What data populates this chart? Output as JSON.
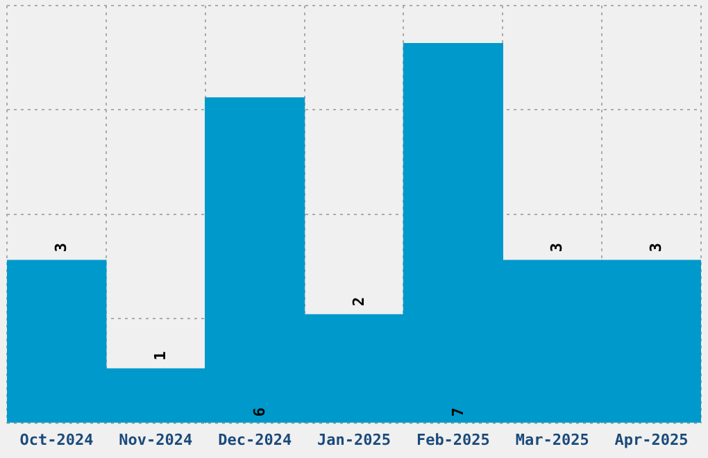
{
  "chart_data": {
    "type": "bar",
    "categories": [
      "Oct-2024",
      "Nov-2024",
      "Dec-2024",
      "Jan-2025",
      "Feb-2025",
      "Mar-2025",
      "Apr-2025"
    ],
    "values": [
      3,
      1,
      6,
      2,
      7,
      3,
      3
    ],
    "color": "#0099cc",
    "data_labels": true,
    "grid": true,
    "ylim": [
      0,
      7.7
    ],
    "yticks": [
      {
        "value": 0,
        "label": null
      },
      {
        "value": 1.925,
        "label": null
      },
      {
        "value": 3.85,
        "label": null
      },
      {
        "value": 5.775,
        "label": null
      },
      {
        "value": 7.7,
        "label": null
      }
    ],
    "tick_labels": "x",
    "legend": false
  }
}
